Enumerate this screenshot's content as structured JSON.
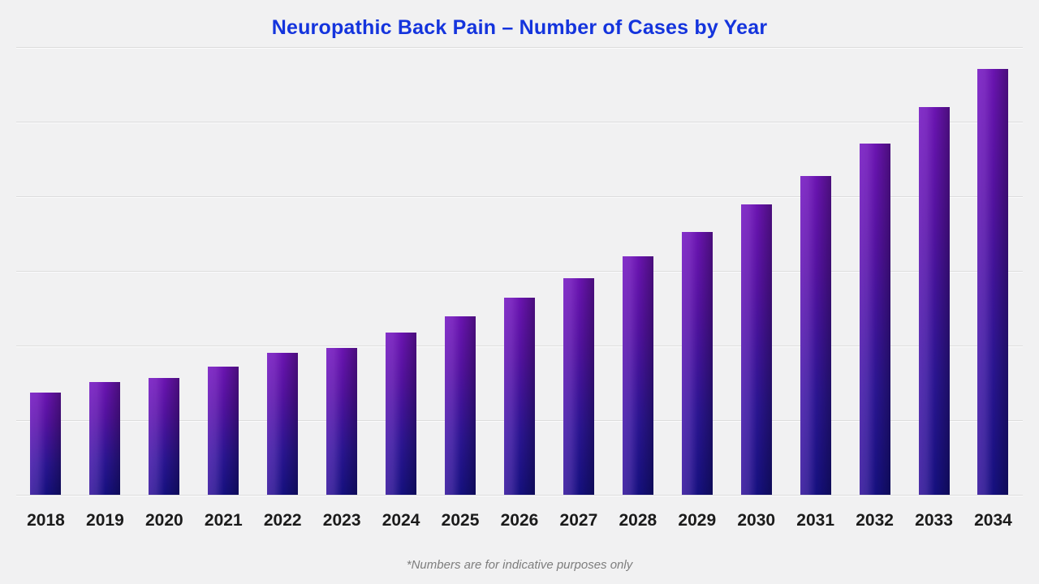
{
  "page": {
    "background": "#f1f1f2",
    "title": "Neuropathic Back Pain – Number of Cases by Year",
    "title_color": "#1434dd",
    "footnote": "*Numbers are for indicative purposes only"
  },
  "chart_data": {
    "type": "bar",
    "title": "Neuropathic Back Pain – Number of Cases by Year",
    "subtitle": "",
    "xlabel": "",
    "ylabel": "",
    "categories": [
      "2018",
      "2019",
      "2020",
      "2021",
      "2022",
      "2023",
      "2024",
      "2025",
      "2026",
      "2027",
      "2028",
      "2029",
      "2030",
      "2031",
      "2032",
      "2033",
      "2034"
    ],
    "values": [
      1.37,
      1.51,
      1.57,
      1.72,
      1.9,
      1.97,
      2.17,
      2.39,
      2.64,
      2.9,
      3.2,
      3.52,
      3.89,
      4.27,
      4.71,
      5.2,
      5.71
    ],
    "value_units": "gridline-intervals (no numeric y-axis labels shown)",
    "ylim": [
      0,
      6
    ],
    "gridline_count": 7,
    "grid": true,
    "legend_position": "none",
    "y_tick_labels_visible": false,
    "footnote": "*Numbers are for indicative purposes only",
    "bar_colors": {
      "top": "#6a14b0",
      "upper": "#53129f",
      "lower": "#2a1590",
      "bottom": "#15107e",
      "left_highlight": "#a45fe0"
    },
    "gridline_color": "#dcdcdc",
    "x_tick_label_color": "#1b1b1b"
  }
}
